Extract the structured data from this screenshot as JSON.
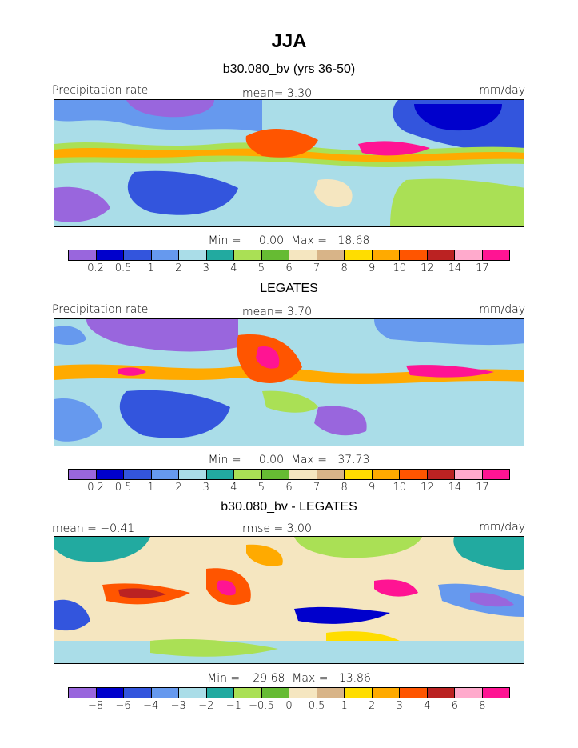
{
  "season": "JJA",
  "panels": [
    {
      "title": "b30.080_bv (yrs 36-50)",
      "left_label": "Precipitation rate",
      "center_label": "mean=    3.30",
      "right_label": "mm/day",
      "minmax": "Min =     0.00  Max =   18.68",
      "colorbar": [
        "#9966dd",
        "#0000cc",
        "#3355dd",
        "#6699ee",
        "#aadde8",
        "#22aaa0",
        "#aae055",
        "#66bb33",
        "#f5e6c0",
        "#d8b488",
        "#ffdd00",
        "#ffaa00",
        "#ff5500",
        "#bb2222",
        "#ffaacc",
        "#ff1493"
      ],
      "ticks": [
        "0.2",
        "0.5",
        "1",
        "2",
        "3",
        "4",
        "5",
        "6",
        "7",
        "8",
        "9",
        "10",
        "12",
        "14",
        "17"
      ]
    },
    {
      "title": "LEGATES",
      "left_label": "Precipitation rate",
      "center_label": "mean=    3.70",
      "right_label": "mm/day",
      "minmax": "Min =     0.00  Max =   37.73",
      "colorbar": [
        "#9966dd",
        "#0000cc",
        "#3355dd",
        "#6699ee",
        "#aadde8",
        "#22aaa0",
        "#aae055",
        "#66bb33",
        "#f5e6c0",
        "#d8b488",
        "#ffdd00",
        "#ffaa00",
        "#ff5500",
        "#bb2222",
        "#ffaacc",
        "#ff1493"
      ],
      "ticks": [
        "0.2",
        "0.5",
        "1",
        "2",
        "3",
        "4",
        "5",
        "6",
        "7",
        "8",
        "9",
        "10",
        "12",
        "14",
        "17"
      ]
    },
    {
      "title": "b30.080_bv - LEGATES",
      "left_label": "mean =   −0.41",
      "center_label": "rmse =    3.00",
      "right_label": "mm/day",
      "minmax": "Min = −29.68  Max =   13.86",
      "colorbar": [
        "#9966dd",
        "#0000cc",
        "#3355dd",
        "#6699ee",
        "#aadde8",
        "#22aaa0",
        "#aae055",
        "#66bb33",
        "#f5e6c0",
        "#d8b488",
        "#ffdd00",
        "#ffaa00",
        "#ff5500",
        "#bb2222",
        "#ffaacc",
        "#ff1493"
      ],
      "ticks": [
        "−8",
        "−6",
        "−4",
        "−3",
        "−2",
        "−1",
        "−0.5",
        "0",
        "0.5",
        "1",
        "2",
        "3",
        "4",
        "6",
        "8"
      ]
    }
  ]
}
